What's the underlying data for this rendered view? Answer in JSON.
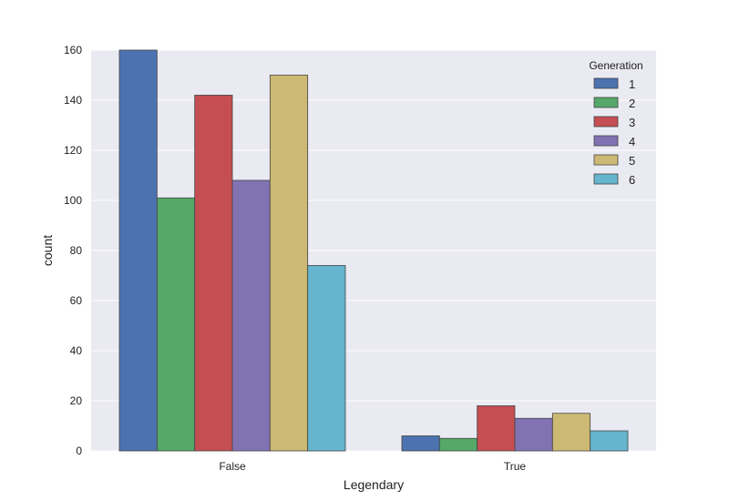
{
  "chart_data": {
    "type": "bar",
    "xlabel": "Legendary",
    "ylabel": "count",
    "categories": [
      "False",
      "True"
    ],
    "ylim": [
      0,
      160
    ],
    "yticks": [
      0,
      20,
      40,
      60,
      80,
      100,
      120,
      140,
      160
    ],
    "grid": true,
    "legend": {
      "title": "Generation",
      "placement": "top-right"
    },
    "series": [
      {
        "name": "1",
        "color": "#4C72B0",
        "values": [
          160,
          6
        ]
      },
      {
        "name": "2",
        "color": "#55A868",
        "values": [
          101,
          5
        ]
      },
      {
        "name": "3",
        "color": "#C44E52",
        "values": [
          142,
          18
        ]
      },
      {
        "name": "4",
        "color": "#8172B2",
        "values": [
          108,
          13
        ]
      },
      {
        "name": "5",
        "color": "#CCB974",
        "values": [
          150,
          15
        ]
      },
      {
        "name": "6",
        "color": "#64B5CD",
        "values": [
          74,
          8
        ]
      }
    ],
    "plot_background": "#EAEAF2",
    "grid_color": "#FFFFFF"
  }
}
